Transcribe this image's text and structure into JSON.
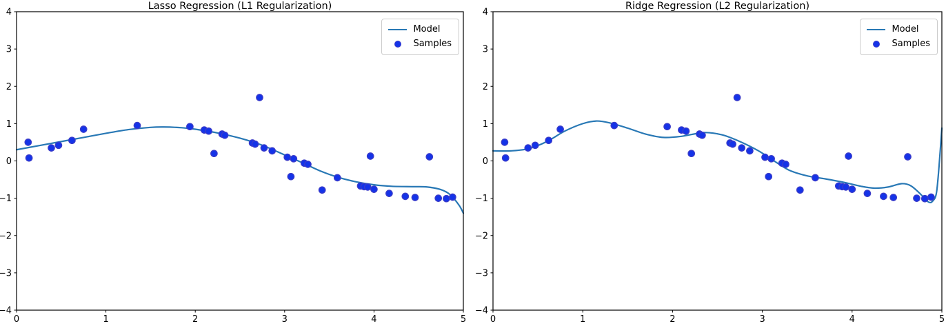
{
  "figure": {
    "background": "#ffffff"
  },
  "colors": {
    "model_line": "#2878b5",
    "sample_fill": "#1433e8",
    "sample_edge": "#3c3cc8",
    "axis": "#000000",
    "tick_label": "#000000",
    "legend_border": "#cccccc"
  },
  "chart_data": [
    {
      "type": "scatter",
      "title": "Lasso Regression (L1 Regularization)",
      "xlabel": "",
      "ylabel": "",
      "xlim": [
        0,
        5
      ],
      "ylim": [
        -4,
        4
      ],
      "grid": false,
      "x_tick_values": [
        0,
        1,
        2,
        3,
        4,
        5
      ],
      "x_tick_labels": [
        "0",
        "1",
        "2",
        "3",
        "4",
        "5"
      ],
      "y_tick_values": [
        4,
        3,
        2,
        1,
        0,
        -1,
        -2,
        -3,
        -4
      ],
      "y_tick_labels": [
        "4",
        "3",
        "2",
        "1",
        "0",
        "−1",
        "−2",
        "−3",
        "−4"
      ],
      "legend": {
        "position": "upper right",
        "entries": [
          {
            "label": "Model",
            "marker": "line"
          },
          {
            "label": "Samples",
            "marker": "dot"
          }
        ]
      },
      "series": [
        {
          "name": "Model",
          "type": "line",
          "points": [
            [
              0,
              0.3
            ],
            [
              0.25,
              0.41
            ],
            [
              0.5,
              0.52
            ],
            [
              0.75,
              0.63
            ],
            [
              1.0,
              0.74
            ],
            [
              1.25,
              0.84
            ],
            [
              1.5,
              0.9
            ],
            [
              1.65,
              0.91
            ],
            [
              1.85,
              0.89
            ],
            [
              2.0,
              0.85
            ],
            [
              2.25,
              0.75
            ],
            [
              2.5,
              0.61
            ],
            [
              2.75,
              0.42
            ],
            [
              3.0,
              0.16
            ],
            [
              3.2,
              -0.05
            ],
            [
              3.4,
              -0.27
            ],
            [
              3.6,
              -0.44
            ],
            [
              3.8,
              -0.56
            ],
            [
              4.0,
              -0.64
            ],
            [
              4.2,
              -0.68
            ],
            [
              4.45,
              -0.69
            ],
            [
              4.6,
              -0.7
            ],
            [
              4.75,
              -0.77
            ],
            [
              4.85,
              -0.9
            ],
            [
              4.95,
              -1.18
            ],
            [
              5.0,
              -1.4
            ]
          ]
        },
        {
          "name": "Samples",
          "type": "scatter",
          "points": [
            [
              0.13,
              0.5
            ],
            [
              0.14,
              0.08
            ],
            [
              0.39,
              0.35
            ],
            [
              0.47,
              0.42
            ],
            [
              0.62,
              0.55
            ],
            [
              0.75,
              0.85
            ],
            [
              1.35,
              0.95
            ],
            [
              1.94,
              0.92
            ],
            [
              2.1,
              0.83
            ],
            [
              2.15,
              0.8
            ],
            [
              2.21,
              0.2
            ],
            [
              2.3,
              0.72
            ],
            [
              2.33,
              0.69
            ],
            [
              2.64,
              0.48
            ],
            [
              2.67,
              0.45
            ],
            [
              2.72,
              1.7
            ],
            [
              2.77,
              0.35
            ],
            [
              2.86,
              0.27
            ],
            [
              3.03,
              0.1
            ],
            [
              3.07,
              -0.42
            ],
            [
              3.1,
              0.06
            ],
            [
              3.22,
              -0.06
            ],
            [
              3.26,
              -0.09
            ],
            [
              3.42,
              -0.78
            ],
            [
              3.59,
              -0.45
            ],
            [
              3.85,
              -0.67
            ],
            [
              3.89,
              -0.69
            ],
            [
              3.93,
              -0.7
            ],
            [
              3.96,
              0.13
            ],
            [
              4.0,
              -0.76
            ],
            [
              4.17,
              -0.87
            ],
            [
              4.35,
              -0.95
            ],
            [
              4.46,
              -0.98
            ],
            [
              4.62,
              0.11
            ],
            [
              4.72,
              -1.0
            ],
            [
              4.81,
              -1.01
            ],
            [
              4.88,
              -0.97
            ]
          ]
        }
      ]
    },
    {
      "type": "scatter",
      "title": "Ridge Regression (L2 Regularization)",
      "xlabel": "",
      "ylabel": "",
      "xlim": [
        0,
        5
      ],
      "ylim": [
        -4,
        4
      ],
      "grid": false,
      "x_tick_values": [
        0,
        1,
        2,
        3,
        4,
        5
      ],
      "x_tick_labels": [
        "0",
        "1",
        "2",
        "3",
        "4",
        "5"
      ],
      "y_tick_values": [
        4,
        3,
        2,
        1,
        0,
        -1,
        -2,
        -3,
        -4
      ],
      "y_tick_labels": [
        "4",
        "3",
        "2",
        "1",
        "0",
        "−1",
        "−2",
        "−3",
        "−4"
      ],
      "legend": {
        "position": "upper right",
        "entries": [
          {
            "label": "Model",
            "marker": "line"
          },
          {
            "label": "Samples",
            "marker": "dot"
          }
        ]
      },
      "series": [
        {
          "name": "Model",
          "type": "line",
          "points": [
            [
              0,
              0.27
            ],
            [
              0.2,
              0.27
            ],
            [
              0.4,
              0.33
            ],
            [
              0.6,
              0.52
            ],
            [
              0.8,
              0.8
            ],
            [
              1.0,
              1.0
            ],
            [
              1.15,
              1.07
            ],
            [
              1.3,
              1.02
            ],
            [
              1.5,
              0.88
            ],
            [
              1.7,
              0.72
            ],
            [
              1.9,
              0.63
            ],
            [
              2.1,
              0.66
            ],
            [
              2.35,
              0.76
            ],
            [
              2.55,
              0.7
            ],
            [
              2.75,
              0.52
            ],
            [
              2.95,
              0.28
            ],
            [
              3.1,
              0.05
            ],
            [
              3.3,
              -0.25
            ],
            [
              3.5,
              -0.4
            ],
            [
              3.7,
              -0.48
            ],
            [
              3.9,
              -0.57
            ],
            [
              4.1,
              -0.68
            ],
            [
              4.25,
              -0.73
            ],
            [
              4.4,
              -0.7
            ],
            [
              4.55,
              -0.61
            ],
            [
              4.65,
              -0.66
            ],
            [
              4.75,
              -0.86
            ],
            [
              4.85,
              -1.1
            ],
            [
              4.9,
              -1.07
            ],
            [
              4.94,
              -0.85
            ],
            [
              4.97,
              -0.1
            ],
            [
              5.0,
              0.88
            ]
          ]
        },
        {
          "name": "Samples",
          "type": "scatter",
          "points": [
            [
              0.13,
              0.5
            ],
            [
              0.14,
              0.08
            ],
            [
              0.39,
              0.35
            ],
            [
              0.47,
              0.42
            ],
            [
              0.62,
              0.55
            ],
            [
              0.75,
              0.85
            ],
            [
              1.35,
              0.95
            ],
            [
              1.94,
              0.92
            ],
            [
              2.1,
              0.83
            ],
            [
              2.15,
              0.8
            ],
            [
              2.21,
              0.2
            ],
            [
              2.3,
              0.72
            ],
            [
              2.33,
              0.69
            ],
            [
              2.64,
              0.48
            ],
            [
              2.67,
              0.45
            ],
            [
              2.72,
              1.7
            ],
            [
              2.77,
              0.35
            ],
            [
              2.86,
              0.27
            ],
            [
              3.03,
              0.1
            ],
            [
              3.07,
              -0.42
            ],
            [
              3.1,
              0.06
            ],
            [
              3.22,
              -0.06
            ],
            [
              3.26,
              -0.09
            ],
            [
              3.42,
              -0.78
            ],
            [
              3.59,
              -0.45
            ],
            [
              3.85,
              -0.67
            ],
            [
              3.89,
              -0.69
            ],
            [
              3.93,
              -0.7
            ],
            [
              3.96,
              0.13
            ],
            [
              4.0,
              -0.76
            ],
            [
              4.17,
              -0.87
            ],
            [
              4.35,
              -0.95
            ],
            [
              4.46,
              -0.98
            ],
            [
              4.62,
              0.11
            ],
            [
              4.72,
              -1.0
            ],
            [
              4.81,
              -1.01
            ],
            [
              4.88,
              -0.97
            ]
          ]
        }
      ]
    }
  ]
}
